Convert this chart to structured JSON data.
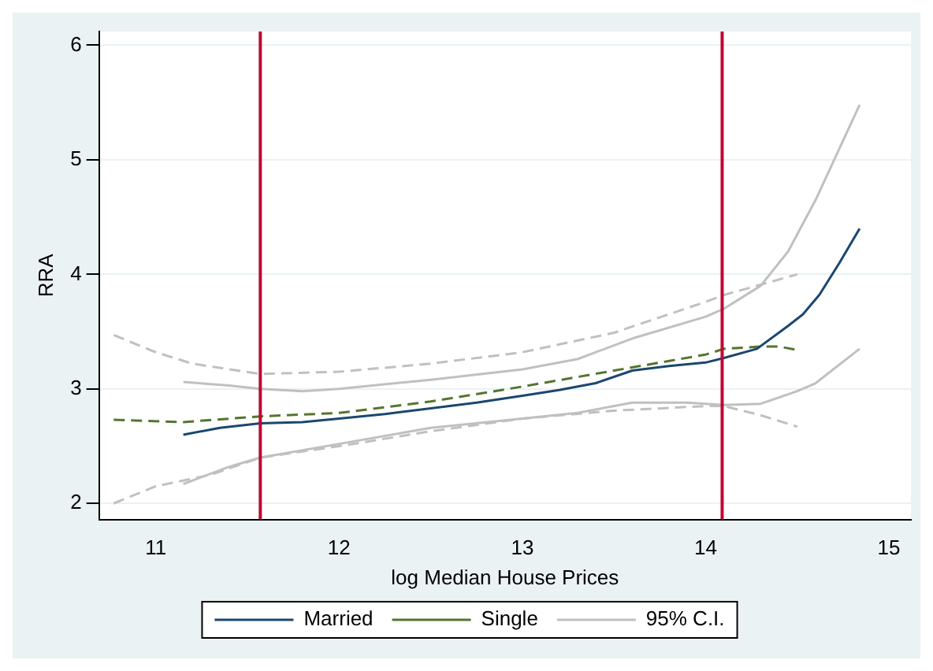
{
  "chart_data": {
    "type": "line",
    "xlabel": "log Median House Prices",
    "ylabel": "RRA",
    "xlim": [
      10.69,
      15.12
    ],
    "ylim": [
      1.86,
      6.12
    ],
    "xticks": [
      11,
      12,
      13,
      14,
      15
    ],
    "yticks": [
      2,
      3,
      4,
      5,
      6
    ],
    "grid": "y",
    "legend": "bottom",
    "marker": "none",
    "ref_lines": [
      {
        "axis": "x",
        "value": 11.57,
        "color": "#c10534"
      },
      {
        "axis": "x",
        "value": 14.09,
        "color": "#c10534"
      }
    ],
    "series": [
      {
        "name": "Married",
        "color": "#1a476f",
        "line_style": "solid",
        "x": [
          11.15,
          11.35,
          11.57,
          11.8,
          12,
          12.25,
          12.5,
          12.75,
          13,
          13.2,
          13.4,
          13.6,
          13.8,
          14.0,
          14.1,
          14.28,
          14.45,
          14.53,
          14.62,
          14.73,
          14.84
        ],
        "values": [
          2.6,
          2.66,
          2.7,
          2.71,
          2.74,
          2.78,
          2.83,
          2.88,
          2.94,
          2.99,
          3.05,
          3.16,
          3.2,
          3.23,
          3.27,
          3.35,
          3.55,
          3.65,
          3.82,
          4.1,
          4.4
        ]
      },
      {
        "name": "Single",
        "color": "#55752f",
        "line_style": "dashed",
        "x": [
          10.77,
          11.15,
          11.57,
          12,
          12.5,
          13,
          13.5,
          14,
          14.1,
          14.3,
          14.4,
          14.5
        ],
        "values": [
          2.73,
          2.71,
          2.76,
          2.79,
          2.89,
          3.02,
          3.16,
          3.3,
          3.35,
          3.37,
          3.37,
          3.34
        ]
      },
      {
        "name": "95% C.I.",
        "color": "#c0c0c0",
        "line_style": "solid",
        "x": [
          11.15,
          11.4,
          11.57,
          11.8,
          12,
          12.5,
          13,
          13.3,
          13.6,
          14,
          14.1,
          14.3,
          14.45,
          14.6,
          14.84
        ],
        "values": [
          3.06,
          3.03,
          3.0,
          2.98,
          3.0,
          3.08,
          3.17,
          3.26,
          3.44,
          3.63,
          3.7,
          3.9,
          4.2,
          4.65,
          5.48
        ]
      },
      {
        "color": "#c0c0c0",
        "line_style": "solid",
        "x": [
          11.15,
          11.4,
          11.57,
          12,
          12.5,
          13,
          13.3,
          13.6,
          13.9,
          14.1,
          14.3,
          14.5,
          14.6,
          14.84
        ],
        "values": [
          2.17,
          2.32,
          2.4,
          2.52,
          2.66,
          2.74,
          2.79,
          2.88,
          2.88,
          2.86,
          2.87,
          2.98,
          3.05,
          3.35
        ]
      },
      {
        "color": "#c0c0c0",
        "line_style": "dashed",
        "x": [
          10.77,
          11.0,
          11.2,
          11.57,
          12,
          12.5,
          13,
          13.5,
          14,
          14.1,
          14.3,
          14.5
        ],
        "values": [
          3.47,
          3.32,
          3.22,
          3.13,
          3.15,
          3.22,
          3.32,
          3.49,
          3.76,
          3.82,
          3.91,
          4.0
        ]
      },
      {
        "color": "#c0c0c0",
        "line_style": "dashed",
        "x": [
          10.77,
          11.0,
          11.3,
          11.57,
          12,
          12.5,
          13,
          13.5,
          14,
          14.1,
          14.3,
          14.5
        ],
        "values": [
          2.0,
          2.15,
          2.25,
          2.4,
          2.5,
          2.63,
          2.74,
          2.81,
          2.85,
          2.85,
          2.77,
          2.67
        ]
      }
    ]
  }
}
